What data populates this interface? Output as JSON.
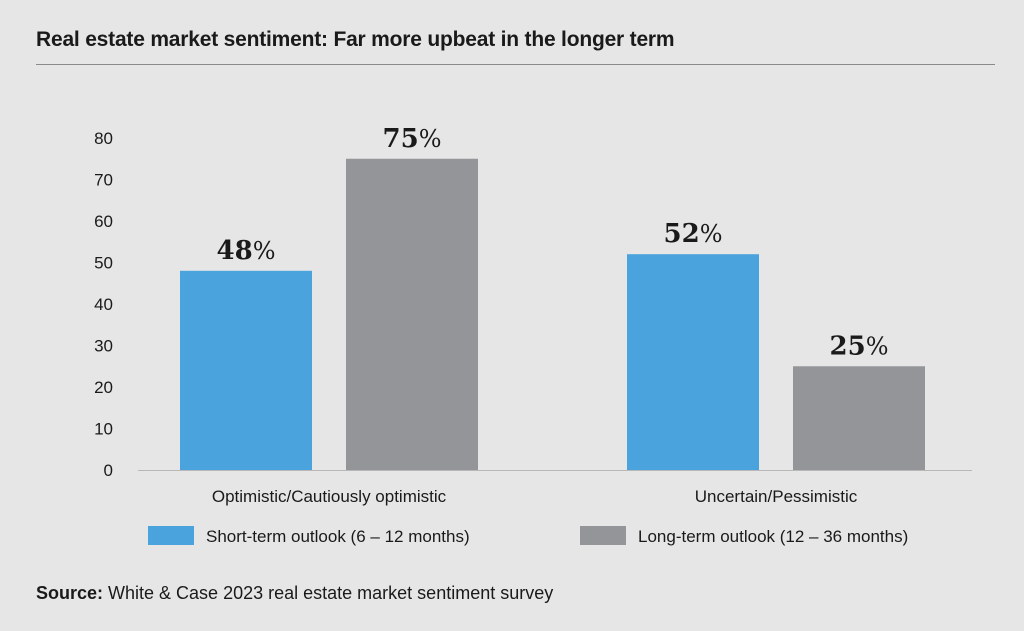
{
  "title": "Real estate market sentiment: Far more upbeat in the longer term",
  "source": {
    "label": "Source:",
    "text": " White & Case 2023 real estate market sentiment survey"
  },
  "colors": {
    "short_term": "#4aa3dc",
    "long_term": "#939598",
    "background": "#e6e6e6"
  },
  "chart_data": {
    "type": "bar",
    "categories": [
      "Optimistic/Cautiously optimistic",
      "Uncertain/Pessimistic"
    ],
    "series": [
      {
        "name": "Short-term outlook (6 – 12 months)",
        "values": [
          48,
          52
        ],
        "labels": [
          "48",
          "52"
        ]
      },
      {
        "name": "Long-term outlook (12 – 36 months)",
        "values": [
          75,
          25
        ],
        "labels": [
          "75",
          "25"
        ]
      }
    ],
    "label_suffix": "%",
    "yticks": [
      "0",
      "10",
      "20",
      "30",
      "40",
      "50",
      "60",
      "70",
      "80"
    ],
    "ylim": [
      0,
      80
    ],
    "legend_position": "bottom",
    "grid": false
  }
}
